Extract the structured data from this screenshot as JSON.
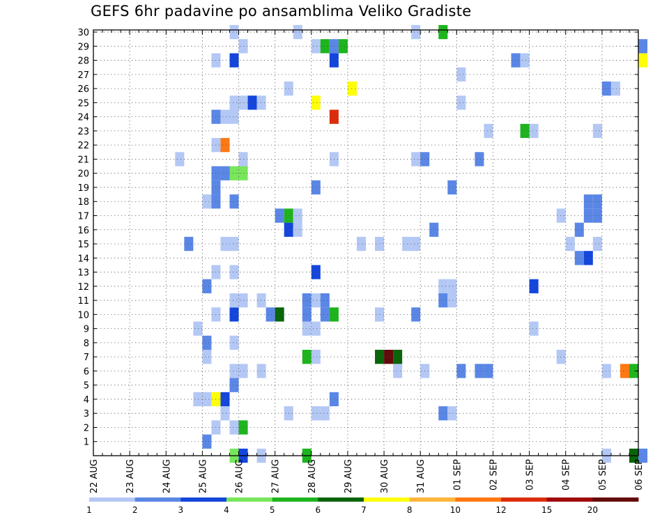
{
  "chart_data": {
    "type": "heatmap",
    "title": "GEFS 6hr padavine po ansamblima Veliko Gradiste",
    "xlabel": "",
    "ylabel": "",
    "x_ticks": [
      "22 AUG",
      "23 AUG",
      "24 AUG",
      "25 AUG",
      "26 AUG",
      "27 AUG",
      "28 AUG",
      "29 AUG",
      "30 AUG",
      "31 AUG",
      "01 SEP",
      "02 SEP",
      "03 SEP",
      "04 SEP",
      "05 SEP",
      "06 SEP"
    ],
    "y_ticks": [
      1,
      2,
      3,
      4,
      5,
      6,
      7,
      8,
      9,
      10,
      11,
      12,
      13,
      14,
      15,
      16,
      17,
      18,
      19,
      20,
      21,
      22,
      23,
      24,
      25,
      26,
      27,
      28,
      29,
      30
    ],
    "x_range": [
      "22 AUG 00z",
      "06 SEP 00z"
    ],
    "y_range": [
      0,
      30
    ],
    "grid": true,
    "legend": {
      "position": "bottom",
      "labels": [
        "1",
        "2",
        "3",
        "4",
        "5",
        "6",
        "7",
        "8",
        "10",
        "12",
        "15",
        "20"
      ],
      "colors": [
        "#b4c8f5",
        "#5a87e6",
        "#1446dc",
        "#78e65a",
        "#1eb41e",
        "#0a640a",
        "#ffff0a",
        "#ffb43c",
        "#ff7814",
        "#dc2d0a",
        "#a00a0a",
        "#640a0a"
      ]
    },
    "cells_note": "each cell = [time step index (6h steps from 22 AUG 00z), ensemble member, color class index 0..11]",
    "cells": [
      [
        15,
        0,
        3
      ],
      [
        16,
        0,
        2
      ],
      [
        18,
        0,
        0
      ],
      [
        23,
        0,
        4
      ],
      [
        56,
        0,
        0
      ],
      [
        59,
        0,
        5
      ],
      [
        60,
        0,
        1
      ],
      [
        12,
        1,
        1
      ],
      [
        13,
        2,
        0
      ],
      [
        15,
        2,
        0
      ],
      [
        16,
        2,
        4
      ],
      [
        14,
        3,
        0
      ],
      [
        21,
        3,
        0
      ],
      [
        24,
        3,
        0
      ],
      [
        25,
        3,
        0
      ],
      [
        38,
        3,
        1
      ],
      [
        39,
        3,
        0
      ],
      [
        11,
        4,
        0
      ],
      [
        12,
        4,
        0
      ],
      [
        13,
        4,
        6
      ],
      [
        14,
        4,
        2
      ],
      [
        26,
        4,
        1
      ],
      [
        15,
        5,
        1
      ],
      [
        15,
        6,
        0
      ],
      [
        16,
        6,
        0
      ],
      [
        18,
        6,
        0
      ],
      [
        33,
        6,
        0
      ],
      [
        36,
        6,
        0
      ],
      [
        40,
        6,
        1
      ],
      [
        42,
        6,
        1
      ],
      [
        43,
        6,
        1
      ],
      [
        56,
        6,
        0
      ],
      [
        58,
        6,
        8
      ],
      [
        59,
        6,
        4
      ],
      [
        12,
        7,
        0
      ],
      [
        23,
        7,
        4
      ],
      [
        24,
        7,
        0
      ],
      [
        31,
        7,
        5
      ],
      [
        32,
        7,
        11
      ],
      [
        33,
        7,
        5
      ],
      [
        51,
        7,
        0
      ],
      [
        12,
        8,
        1
      ],
      [
        15,
        8,
        0
      ],
      [
        11,
        9,
        0
      ],
      [
        23,
        9,
        0
      ],
      [
        24,
        9,
        0
      ],
      [
        48,
        9,
        0
      ],
      [
        13,
        10,
        0
      ],
      [
        15,
        10,
        2
      ],
      [
        19,
        10,
        1
      ],
      [
        20,
        10,
        5
      ],
      [
        23,
        10,
        1
      ],
      [
        25,
        10,
        1
      ],
      [
        26,
        10,
        4
      ],
      [
        31,
        10,
        0
      ],
      [
        35,
        10,
        1
      ],
      [
        15,
        11,
        0
      ],
      [
        16,
        11,
        0
      ],
      [
        18,
        11,
        0
      ],
      [
        23,
        11,
        1
      ],
      [
        24,
        11,
        0
      ],
      [
        25,
        11,
        1
      ],
      [
        38,
        11,
        1
      ],
      [
        39,
        11,
        0
      ],
      [
        12,
        12,
        1
      ],
      [
        38,
        12,
        0
      ],
      [
        39,
        12,
        0
      ],
      [
        48,
        12,
        2
      ],
      [
        13,
        13,
        0
      ],
      [
        15,
        13,
        0
      ],
      [
        24,
        13,
        2
      ],
      [
        53,
        14,
        1
      ],
      [
        54,
        14,
        2
      ],
      [
        10,
        15,
        1
      ],
      [
        14,
        15,
        0
      ],
      [
        15,
        15,
        0
      ],
      [
        29,
        15,
        0
      ],
      [
        31,
        15,
        0
      ],
      [
        34,
        15,
        0
      ],
      [
        35,
        15,
        0
      ],
      [
        52,
        15,
        0
      ],
      [
        55,
        15,
        0
      ],
      [
        21,
        16,
        2
      ],
      [
        22,
        16,
        0
      ],
      [
        37,
        16,
        1
      ],
      [
        53,
        16,
        1
      ],
      [
        20,
        17,
        1
      ],
      [
        21,
        17,
        4
      ],
      [
        22,
        17,
        0
      ],
      [
        51,
        17,
        0
      ],
      [
        54,
        17,
        1
      ],
      [
        55,
        17,
        1
      ],
      [
        12,
        18,
        0
      ],
      [
        13,
        18,
        1
      ],
      [
        15,
        18,
        1
      ],
      [
        54,
        18,
        1
      ],
      [
        55,
        18,
        1
      ],
      [
        13,
        19,
        1
      ],
      [
        24,
        19,
        1
      ],
      [
        39,
        19,
        1
      ],
      [
        13,
        20,
        1
      ],
      [
        14,
        20,
        1
      ],
      [
        15,
        20,
        3
      ],
      [
        16,
        20,
        3
      ],
      [
        9,
        21,
        0
      ],
      [
        16,
        21,
        0
      ],
      [
        26,
        21,
        0
      ],
      [
        35,
        21,
        0
      ],
      [
        36,
        21,
        1
      ],
      [
        42,
        21,
        1
      ],
      [
        13,
        22,
        0
      ],
      [
        14,
        22,
        8
      ],
      [
        43,
        23,
        0
      ],
      [
        47,
        23,
        4
      ],
      [
        48,
        23,
        0
      ],
      [
        55,
        23,
        0
      ],
      [
        13,
        24,
        1
      ],
      [
        14,
        24,
        0
      ],
      [
        15,
        24,
        0
      ],
      [
        26,
        24,
        9
      ],
      [
        15,
        25,
        0
      ],
      [
        16,
        25,
        0
      ],
      [
        17,
        25,
        2
      ],
      [
        18,
        25,
        0
      ],
      [
        24,
        25,
        6
      ],
      [
        40,
        25,
        0
      ],
      [
        21,
        26,
        0
      ],
      [
        28,
        26,
        6
      ],
      [
        56,
        26,
        1
      ],
      [
        57,
        26,
        0
      ],
      [
        40,
        27,
        0
      ],
      [
        13,
        28,
        0
      ],
      [
        15,
        28,
        2
      ],
      [
        26,
        28,
        2
      ],
      [
        46,
        28,
        1
      ],
      [
        47,
        28,
        0
      ],
      [
        60,
        28,
        6
      ],
      [
        16,
        29,
        0
      ],
      [
        24,
        29,
        0
      ],
      [
        25,
        29,
        4
      ],
      [
        26,
        29,
        1
      ],
      [
        27,
        29,
        4
      ],
      [
        60,
        29,
        1
      ],
      [
        15,
        30,
        0
      ],
      [
        22,
        30,
        0
      ],
      [
        35,
        30,
        0
      ],
      [
        38,
        30,
        4
      ]
    ]
  }
}
